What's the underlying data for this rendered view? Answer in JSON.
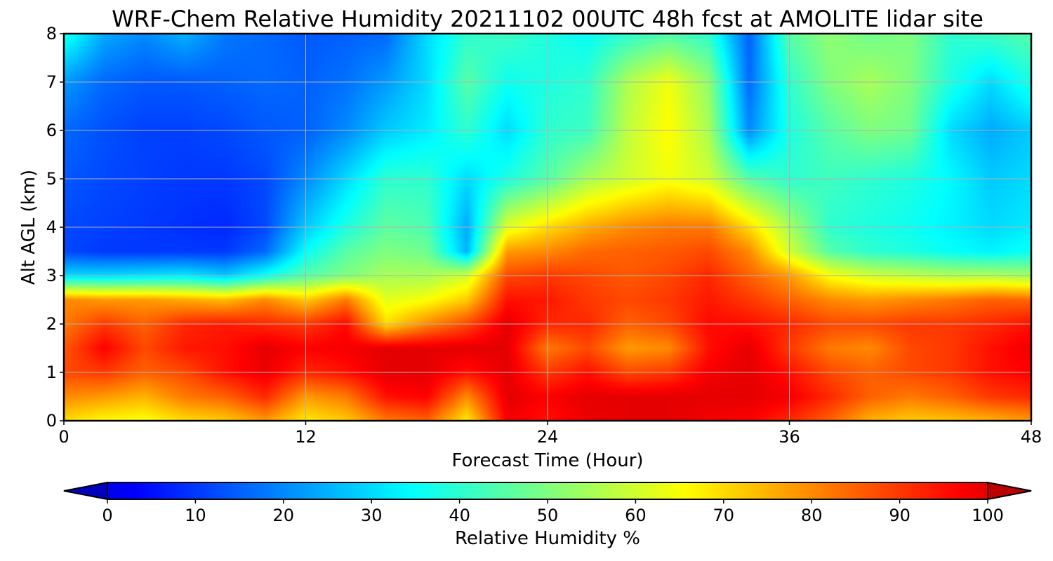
{
  "chart_data": {
    "type": "heatmap",
    "title": "WRF-Chem Relative Humidity 20211102 00UTC 48h fcst at AMOLITE lidar site",
    "xlabel": "Forecast Time (Hour)",
    "ylabel": "Alt AGL (km)",
    "xlim": [
      0,
      48
    ],
    "ylim": [
      0,
      8
    ],
    "x_ticks": [
      "0",
      "12",
      "24",
      "36",
      "48"
    ],
    "y_ticks": [
      "0",
      "1",
      "2",
      "3",
      "4",
      "5",
      "6",
      "7",
      "8"
    ],
    "grid": true,
    "colormap": "jet",
    "colorbar": {
      "label": "Relative Humidity %",
      "ticks": [
        "0",
        "10",
        "20",
        "30",
        "40",
        "50",
        "60",
        "70",
        "80",
        "90",
        "100"
      ],
      "range": [
        0,
        100
      ],
      "extend": "both",
      "orientation": "horizontal"
    },
    "x": [
      0,
      2,
      4,
      6,
      8,
      10,
      12,
      14,
      16,
      18,
      20,
      22,
      24,
      26,
      28,
      30,
      32,
      34,
      36,
      38,
      40,
      42,
      44,
      46,
      48
    ],
    "y": [
      0,
      0.5,
      1,
      1.5,
      2,
      2.5,
      3,
      3.5,
      4,
      5,
      6,
      7,
      8
    ],
    "values": [
      [
        70,
        66,
        65,
        70,
        72,
        78,
        68,
        72,
        82,
        85,
        68,
        98,
        95,
        99,
        100,
        100,
        98,
        97,
        92,
        85,
        75,
        72,
        73,
        75,
        78
      ],
      [
        80,
        78,
        75,
        82,
        85,
        92,
        78,
        82,
        95,
        97,
        80,
        100,
        97,
        100,
        100,
        100,
        100,
        100,
        98,
        92,
        85,
        82,
        85,
        90,
        92
      ],
      [
        88,
        90,
        85,
        88,
        95,
        99,
        92,
        95,
        100,
        100,
        95,
        100,
        90,
        95,
        88,
        90,
        98,
        100,
        95,
        88,
        85,
        88,
        90,
        95,
        97
      ],
      [
        86,
        97,
        88,
        94,
        95,
        100,
        97,
        98,
        100,
        100,
        100,
        100,
        82,
        88,
        78,
        80,
        95,
        100,
        90,
        82,
        80,
        88,
        90,
        95,
        99
      ],
      [
        82,
        90,
        85,
        92,
        94,
        92,
        90,
        96,
        70,
        80,
        88,
        100,
        92,
        92,
        85,
        88,
        96,
        95,
        92,
        88,
        88,
        90,
        90,
        92,
        95
      ],
      [
        80,
        78,
        78,
        76,
        74,
        80,
        72,
        82,
        62,
        65,
        72,
        95,
        94,
        90,
        88,
        90,
        94,
        90,
        85,
        80,
        78,
        80,
        82,
        85,
        84
      ],
      [
        30,
        30,
        31,
        32,
        28,
        36,
        45,
        50,
        55,
        55,
        60,
        88,
        90,
        88,
        86,
        88,
        92,
        85,
        78,
        65,
        60,
        58,
        56,
        56,
        54
      ],
      [
        12,
        10,
        10,
        10,
        10,
        16,
        35,
        45,
        50,
        48,
        25,
        78,
        80,
        84,
        85,
        86,
        88,
        80,
        60,
        45,
        40,
        38,
        35,
        33,
        36
      ],
      [
        12,
        11,
        10,
        9,
        8,
        12,
        28,
        38,
        46,
        44,
        24,
        62,
        70,
        76,
        80,
        82,
        82,
        70,
        55,
        40,
        38,
        36,
        33,
        30,
        32
      ],
      [
        14,
        12,
        11,
        10,
        10,
        12,
        20,
        30,
        40,
        40,
        30,
        38,
        45,
        55,
        60,
        64,
        60,
        45,
        40,
        42,
        40,
        38,
        34,
        28,
        30
      ],
      [
        16,
        13,
        11,
        11,
        12,
        14,
        15,
        20,
        28,
        32,
        40,
        30,
        40,
        42,
        58,
        66,
        55,
        20,
        38,
        45,
        50,
        48,
        30,
        24,
        28
      ],
      [
        22,
        16,
        14,
        14,
        15,
        16,
        15,
        17,
        22,
        30,
        45,
        36,
        38,
        40,
        56,
        64,
        52,
        16,
        40,
        50,
        55,
        50,
        38,
        30,
        38
      ],
      [
        38,
        24,
        20,
        25,
        18,
        16,
        14,
        15,
        16,
        30,
        40,
        42,
        38,
        35,
        40,
        44,
        40,
        15,
        45,
        52,
        48,
        50,
        40,
        42,
        45
      ]
    ]
  }
}
